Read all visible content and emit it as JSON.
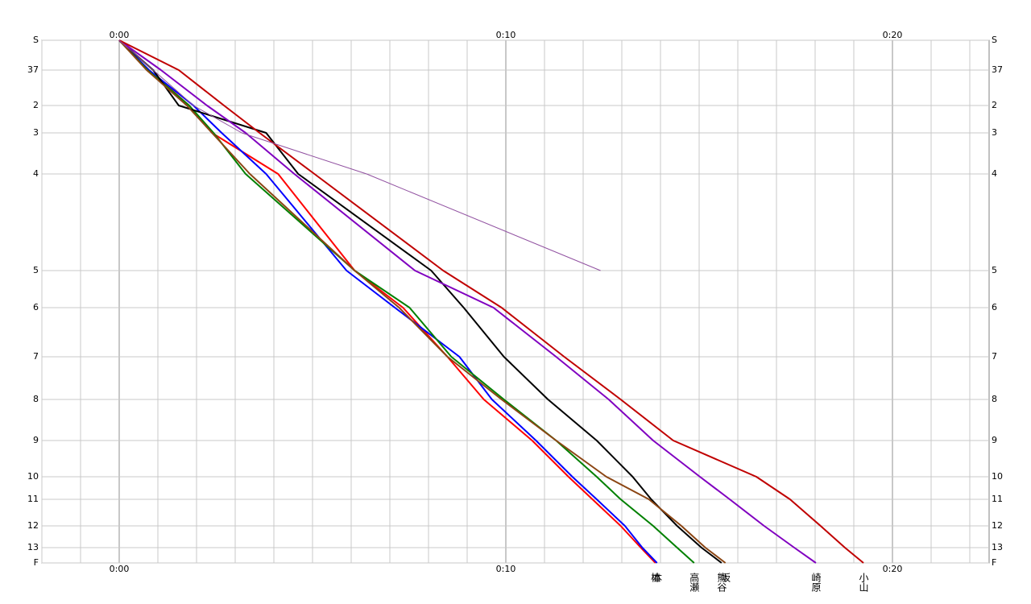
{
  "chart_data": {
    "type": "line",
    "xlim": [
      -2,
      22.5
    ],
    "xticks": [
      {
        "value": 0,
        "label": "0:00"
      },
      {
        "value": 10,
        "label": "0:10"
      },
      {
        "value": 20,
        "label": "0:20"
      }
    ],
    "ylim": [
      0,
      649
    ],
    "yticks": [
      {
        "value": 0,
        "label": "S"
      },
      37,
      {
        "value": 81,
        "label": "2"
      },
      {
        "value": 115,
        "label": "3"
      },
      {
        "value": 166,
        "label": "4"
      },
      {
        "value": 286,
        "label": "5"
      },
      {
        "value": 332,
        "label": "6"
      },
      {
        "value": 393,
        "label": "7"
      },
      {
        "value": 446,
        "label": "8"
      },
      {
        "value": 497,
        "label": "9"
      },
      {
        "value": 542,
        "label": "10"
      },
      {
        "value": 570,
        "label": "11"
      },
      {
        "value": 603,
        "label": "12"
      },
      {
        "value": 630,
        "label": "13"
      },
      {
        "value": 649,
        "label": "F"
      }
    ],
    "yticks_note_free": true,
    "grid": true,
    "series": [
      {
        "name": "植",
        "color": "#ff0000",
        "width": 2,
        "values": [
          0,
          0.77,
          1.81,
          2.4,
          4.11,
          6.09,
          7.34,
          8.49,
          9.43,
          10.68,
          11.62,
          12.24,
          12.97,
          13.49,
          13.87
        ]
      },
      {
        "name": "本",
        "color": "#0000ff",
        "width": 2,
        "values": [
          0,
          0.77,
          1.92,
          2.65,
          3.8,
          5.88,
          7.13,
          8.8,
          9.64,
          10.78,
          11.72,
          12.35,
          13.08,
          13.53,
          13.91
        ]
      },
      {
        "name": "高瀬",
        "color": "#008000",
        "width": 2,
        "values": [
          0,
          0.73,
          1.81,
          2.44,
          3.27,
          6.09,
          7.51,
          8.59,
          9.95,
          11.3,
          12.35,
          12.97,
          13.81,
          14.43,
          14.87
        ]
      },
      {
        "name": "熊谷",
        "color": "#000000",
        "width": 2,
        "values": [
          0,
          0.88,
          1.54,
          3.8,
          4.63,
          8.07,
          8.91,
          9.95,
          11.09,
          12.35,
          13.28,
          13.76,
          14.43,
          15.06,
          15.58
        ]
      },
      {
        "name": "坂",
        "color": "#8b4513",
        "width": 2,
        "values": [
          0,
          0.71,
          1.75,
          2.4,
          3.38,
          6.09,
          7.24,
          8.49,
          9.89,
          11.3,
          12.6,
          13.7,
          14.54,
          15.16,
          15.68
        ]
      },
      {
        "name": "崎原",
        "color": "#8000c0",
        "width": 2,
        "values": [
          0,
          1.08,
          2.27,
          3.27,
          4.53,
          7.65,
          9.68,
          11.3,
          12.66,
          13.81,
          15.02,
          15.79,
          16.68,
          17.46,
          18.02
        ]
      },
      {
        "name": "小山",
        "color": "#c00000",
        "width": 2,
        "values": [
          0,
          1.54,
          2.71,
          3.63,
          5.05,
          8.38,
          9.89,
          11.51,
          12.97,
          14.33,
          16.48,
          17.35,
          18.14,
          18.77,
          19.25
        ]
      },
      {
        "color": "#9050a0",
        "width": 1,
        "values": [
          0,
          0.88,
          1.92,
          3.17,
          6.4,
          12.45,
          null,
          null,
          null,
          null,
          null,
          null,
          null,
          null,
          null
        ]
      }
    ]
  }
}
